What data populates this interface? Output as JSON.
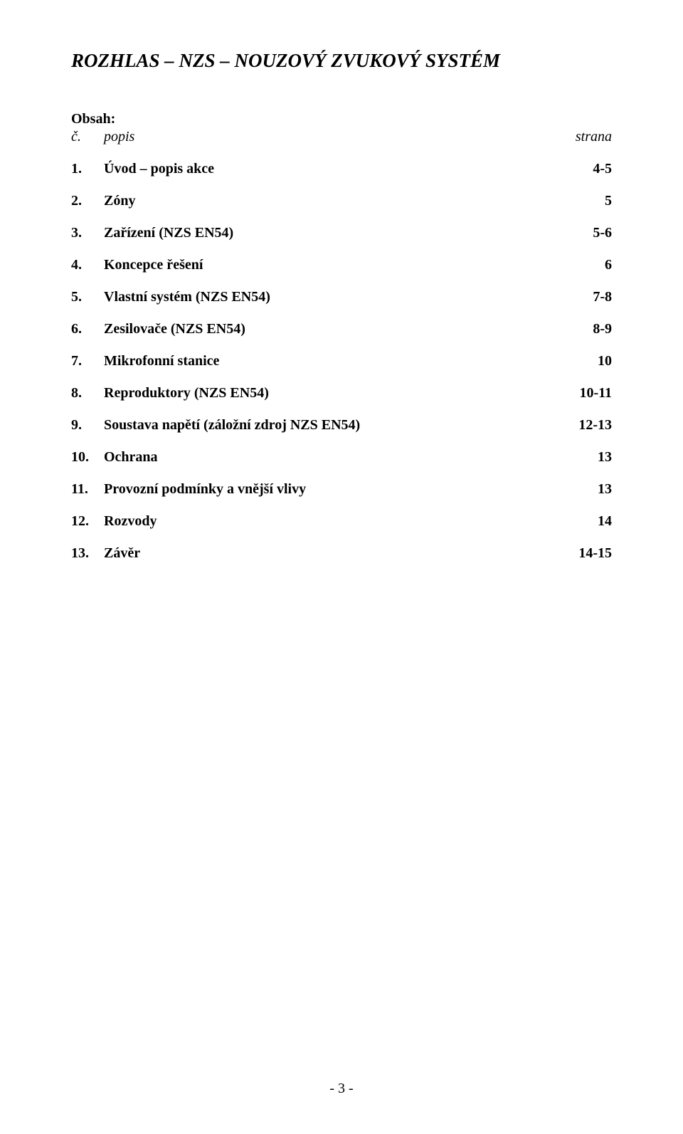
{
  "title": "ROZHLAS – NZS – NOUZOVÝ ZVUKOVÝ SYSTÉM",
  "obsah_label": "Obsah:",
  "header": {
    "num": "č.",
    "desc": "popis",
    "page": "strana"
  },
  "toc": [
    {
      "num": "1.",
      "desc": "Úvod – popis akce",
      "page": "4-5"
    },
    {
      "num": "2.",
      "desc": "Zóny",
      "page": "5"
    },
    {
      "num": "3.",
      "desc": "Zařízení (NZS EN54)",
      "page": "5-6"
    },
    {
      "num": "4.",
      "desc": "Koncepce řešení",
      "page": "6"
    },
    {
      "num": "5.",
      "desc": "Vlastní systém (NZS EN54)",
      "page": "7-8"
    },
    {
      "num": "6.",
      "desc": "Zesilovače (NZS EN54)",
      "page": "8-9"
    },
    {
      "num": "7.",
      "desc": "Mikrofonní stanice",
      "page": "10"
    },
    {
      "num": "8.",
      "desc": "Reproduktory (NZS EN54)",
      "page": "10-11"
    },
    {
      "num": "9.",
      "desc": "Soustava napětí (záložní zdroj NZS EN54)",
      "page": "12-13"
    },
    {
      "num": "10.",
      "desc": "Ochrana",
      "page": "13"
    },
    {
      "num": "11.",
      "desc": "Provozní podmínky a vnější vlivy",
      "page": "13"
    },
    {
      "num": "12.",
      "desc": "Rozvody",
      "page": "14"
    },
    {
      "num": "13.",
      "desc": "Závěr",
      "page": "14-15"
    }
  ],
  "footer": "- 3 -"
}
